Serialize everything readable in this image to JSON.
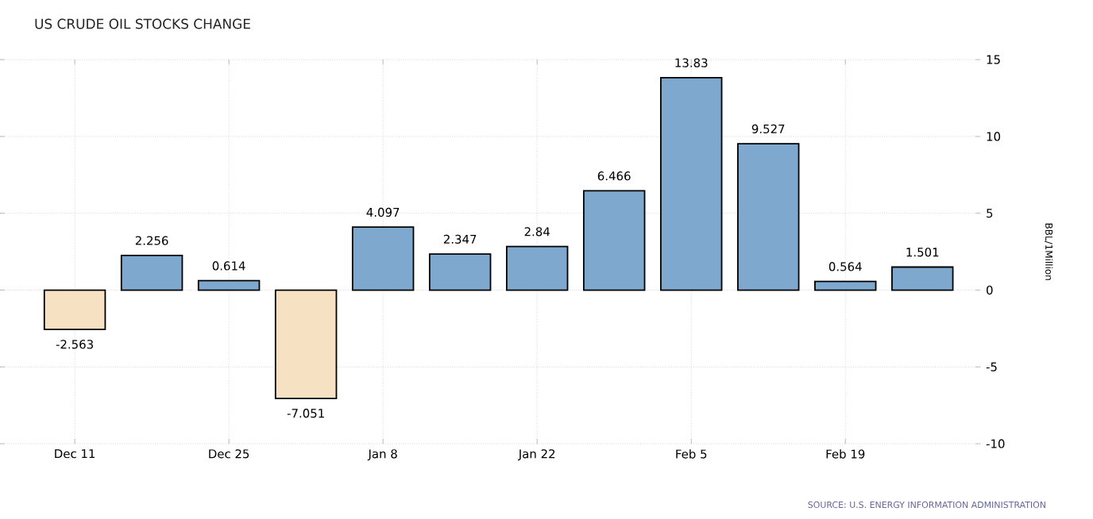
{
  "chart_data": {
    "type": "bar",
    "title": "US CRUDE OIL STOCKS CHANGE",
    "ylabel": "BBL/1Million",
    "annotations": [
      "SOURCE: U.S. ENERGY INFORMATION ADMINISTRATION"
    ],
    "categories": [
      "Dec 11",
      null,
      "Dec 25",
      null,
      "Jan 8",
      null,
      "Jan 22",
      null,
      "Feb 5",
      null,
      "Feb 19",
      null
    ],
    "values": [
      -2.563,
      2.256,
      0.614,
      -7.051,
      4.097,
      2.347,
      2.84,
      6.466,
      13.83,
      9.527,
      0.564,
      1.501
    ],
    "colors": [
      "#f6e2c2",
      "#7fa8cf",
      "#7fa8cf",
      "#f6e2c2",
      "#7fa8cf",
      "#7fa8cf",
      "#7fa8cf",
      "#7fa8cf",
      "#7fa8cf",
      "#7fa8cf",
      "#7fa8cf",
      "#7fa8cf"
    ],
    "data_labels": true,
    "ylim": [
      -10,
      15
    ],
    "yticks": [
      -10,
      -5,
      0,
      5,
      10,
      15
    ],
    "grid": true
  }
}
